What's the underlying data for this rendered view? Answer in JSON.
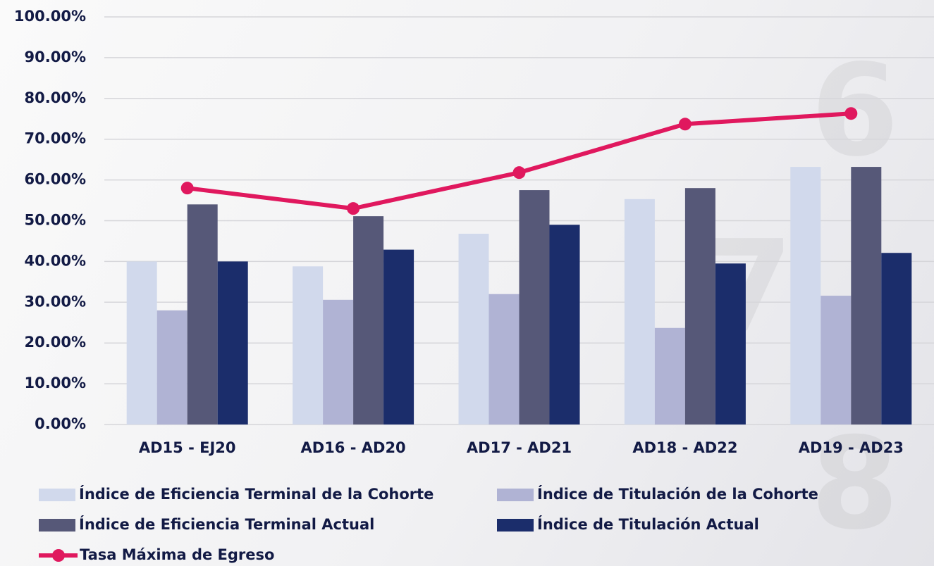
{
  "chart_data": {
    "type": "bar",
    "categories": [
      "AD15 - EJ20",
      "AD16 - AD20",
      "AD17 - AD21",
      "AD18 - AD22",
      "AD19 - AD23"
    ],
    "series": [
      {
        "name": "Índice de Eficiencia Terminal de la Cohorte",
        "color": "#d1d9ec",
        "values": [
          40.0,
          38.8,
          46.8,
          55.3,
          63.2
        ]
      },
      {
        "name": "Índice de Titulación de la Cohorte",
        "color": "#b0b3d4",
        "values": [
          28.0,
          30.6,
          32.0,
          23.7,
          31.6
        ]
      },
      {
        "name": "Índice de Eficiencia Terminal Actual",
        "color": "#565878",
        "values": [
          54.0,
          51.1,
          57.5,
          58.0,
          63.2
        ]
      },
      {
        "name": "Índice de Titulación Actual",
        "color": "#1b2d6b",
        "values": [
          40.0,
          42.9,
          49.0,
          39.5,
          42.1
        ]
      },
      {
        "name": "Tasa Máxima de Egreso",
        "color": "#e0185e",
        "type": "line",
        "values": [
          58.0,
          53.0,
          61.8,
          73.7,
          76.3
        ]
      }
    ],
    "ylim": [
      0,
      100
    ],
    "yticks": [
      {
        "value": 0,
        "label": "0.00%"
      },
      {
        "value": 10,
        "label": "10.00%"
      },
      {
        "value": 20,
        "label": "20.00%"
      },
      {
        "value": 30,
        "label": "30.00%"
      },
      {
        "value": 40,
        "label": "40.00%"
      },
      {
        "value": 50,
        "label": "50.00%"
      },
      {
        "value": 60,
        "label": "60.00%"
      },
      {
        "value": 70,
        "label": "70.00%"
      },
      {
        "value": 80,
        "label": "80.00%"
      },
      {
        "value": 90,
        "label": "90.00%"
      },
      {
        "value": 100,
        "label": "100.00%"
      }
    ],
    "grid": true
  }
}
